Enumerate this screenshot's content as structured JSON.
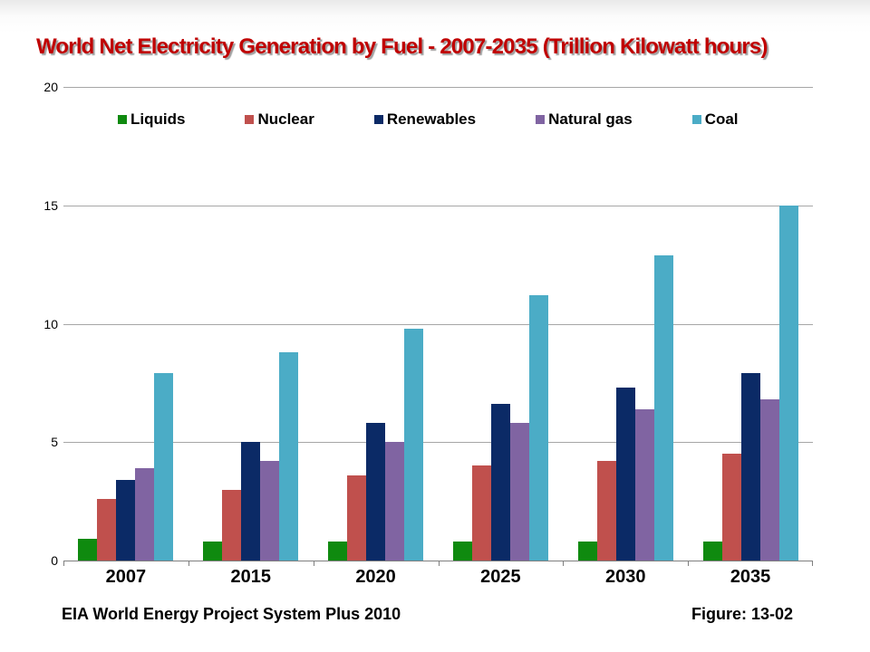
{
  "title": "World Net Electricity Generation by Fuel - 2007-2035 (Trillion Kilowatt hours)",
  "footer": {
    "left": "EIA World Energy Project System Plus 2010",
    "right": "Figure: 13-02"
  },
  "colors": {
    "title_text": "#c00000",
    "gridline": "#a6a6a6",
    "axis_line": "#7f7f7f"
  },
  "chart_data": {
    "type": "bar",
    "title": "World Net Electricity Generation by Fuel - 2007-2035 (Trillion Kilowatt hours)",
    "categories": [
      "2007",
      "2015",
      "2020",
      "2025",
      "2030",
      "2035"
    ],
    "series": [
      {
        "name": "Liquids",
        "color": "#0f8a0f",
        "values": [
          0.9,
          0.8,
          0.8,
          0.8,
          0.8,
          0.8
        ]
      },
      {
        "name": "Nuclear",
        "color": "#c0504d",
        "values": [
          2.6,
          3.0,
          3.6,
          4.0,
          4.2,
          4.5
        ]
      },
      {
        "name": "Renewables",
        "color": "#0b2a66",
        "values": [
          3.4,
          5.0,
          5.8,
          6.6,
          7.3,
          7.9
        ]
      },
      {
        "name": "Natural gas",
        "color": "#8064a2",
        "values": [
          3.9,
          4.2,
          5.0,
          5.8,
          6.4,
          6.8
        ]
      },
      {
        "name": "Coal",
        "color": "#4bacc6",
        "values": [
          7.9,
          8.8,
          9.8,
          11.2,
          12.9,
          15.0
        ]
      }
    ],
    "xlabel": "",
    "ylabel": "",
    "ylim": [
      0,
      20
    ],
    "yticks": [
      0,
      5,
      10,
      15,
      20
    ],
    "grid": true,
    "legend_position": "top"
  }
}
